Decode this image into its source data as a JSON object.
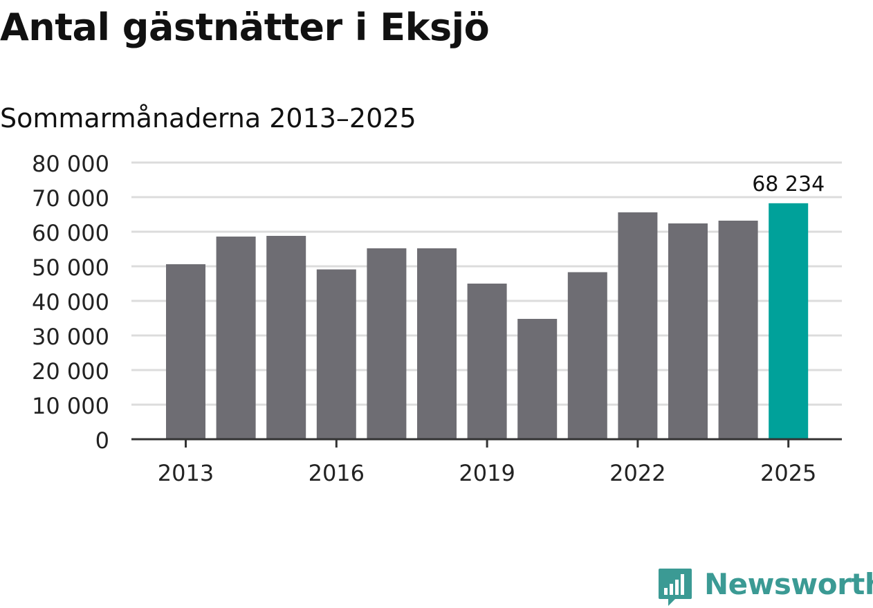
{
  "header": {
    "title": "Antal gästnätter i Eksjö",
    "subtitle": "Sommarmånaderna 2013–2025"
  },
  "brand": {
    "name": "Newsworthy",
    "color": "#3b9a94",
    "icon": "bar-chart-speech-bubble-icon"
  },
  "colors": {
    "bar": "#6e6d73",
    "highlight": "#00a19a",
    "grid": "#dcdcdc",
    "axis": "#333333"
  },
  "chart_data": {
    "type": "bar",
    "title": "Antal gästnätter i Eksjö",
    "subtitle": "Sommarmånaderna 2013–2025",
    "categories": [
      "2013",
      "2014",
      "2015",
      "2016",
      "2017",
      "2018",
      "2019",
      "2020",
      "2021",
      "2022",
      "2023",
      "2024",
      "2025"
    ],
    "values": [
      50600,
      58600,
      58800,
      49100,
      55200,
      55200,
      45000,
      34800,
      48300,
      65600,
      62400,
      63200,
      68234
    ],
    "highlight_index": 12,
    "annotation": {
      "index": 12,
      "text": "68 234"
    },
    "x_tick_labels": [
      "2013",
      "2016",
      "2019",
      "2022",
      "2025"
    ],
    "y_ticks": [
      0,
      10000,
      20000,
      30000,
      40000,
      50000,
      60000,
      70000,
      80000
    ],
    "y_tick_labels": [
      "0",
      "10 000",
      "20 000",
      "30 000",
      "40 000",
      "50 000",
      "60 000",
      "70 000",
      "80 000"
    ],
    "ylim": [
      0,
      80000
    ],
    "xlabel": "",
    "ylabel": "",
    "grid": true,
    "legend": "none"
  }
}
